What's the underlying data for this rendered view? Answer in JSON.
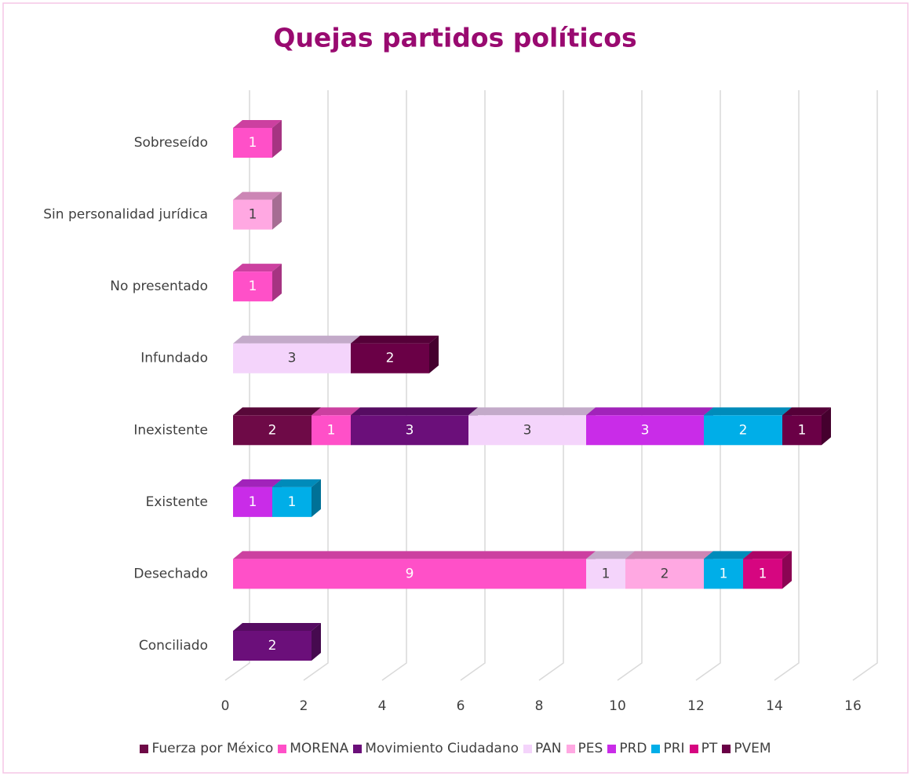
{
  "chart_data": {
    "type": "bar3d_stacked_horizontal",
    "title": "Quejas partidos políticos",
    "categories": [
      "Conciliado",
      "Desechado",
      "Existente",
      "Inexistente",
      "Infundado",
      "No presentado",
      "Sin personalidad jurídica",
      "Sobreseído"
    ],
    "series": [
      {
        "name": "Fuerza por México",
        "color": "#6e0a47",
        "values": [
          null,
          null,
          null,
          2,
          null,
          null,
          null,
          null
        ]
      },
      {
        "name": "MORENA",
        "color": "#ff50c8",
        "values": [
          null,
          9,
          null,
          1,
          null,
          1,
          null,
          1
        ]
      },
      {
        "name": "Movimiento Ciudadano",
        "color": "#6b0f7a",
        "values": [
          2,
          null,
          null,
          3,
          null,
          null,
          null,
          null
        ]
      },
      {
        "name": "PAN",
        "color": "#f4d4fb",
        "values": [
          null,
          1,
          null,
          3,
          3,
          null,
          null,
          null
        ]
      },
      {
        "name": "PES",
        "color": "#ffa8e2",
        "values": [
          null,
          2,
          null,
          null,
          null,
          null,
          1,
          null
        ]
      },
      {
        "name": "PRD",
        "color": "#c92ce8",
        "values": [
          null,
          null,
          1,
          3,
          null,
          null,
          null,
          null
        ]
      },
      {
        "name": "PRI",
        "color": "#00aee8",
        "values": [
          null,
          1,
          1,
          2,
          null,
          null,
          null,
          null
        ]
      },
      {
        "name": "PT",
        "color": "#d60680",
        "values": [
          null,
          1,
          null,
          null,
          null,
          null,
          null,
          null
        ]
      },
      {
        "name": "PVEM",
        "color": "#6a0046",
        "values": [
          null,
          null,
          null,
          1,
          2,
          null,
          null,
          null
        ]
      }
    ],
    "xlim": [
      0,
      16
    ],
    "xticks": [
      0,
      2,
      4,
      6,
      8,
      10,
      12,
      14,
      16
    ],
    "grid": true,
    "legend": "bottom"
  }
}
